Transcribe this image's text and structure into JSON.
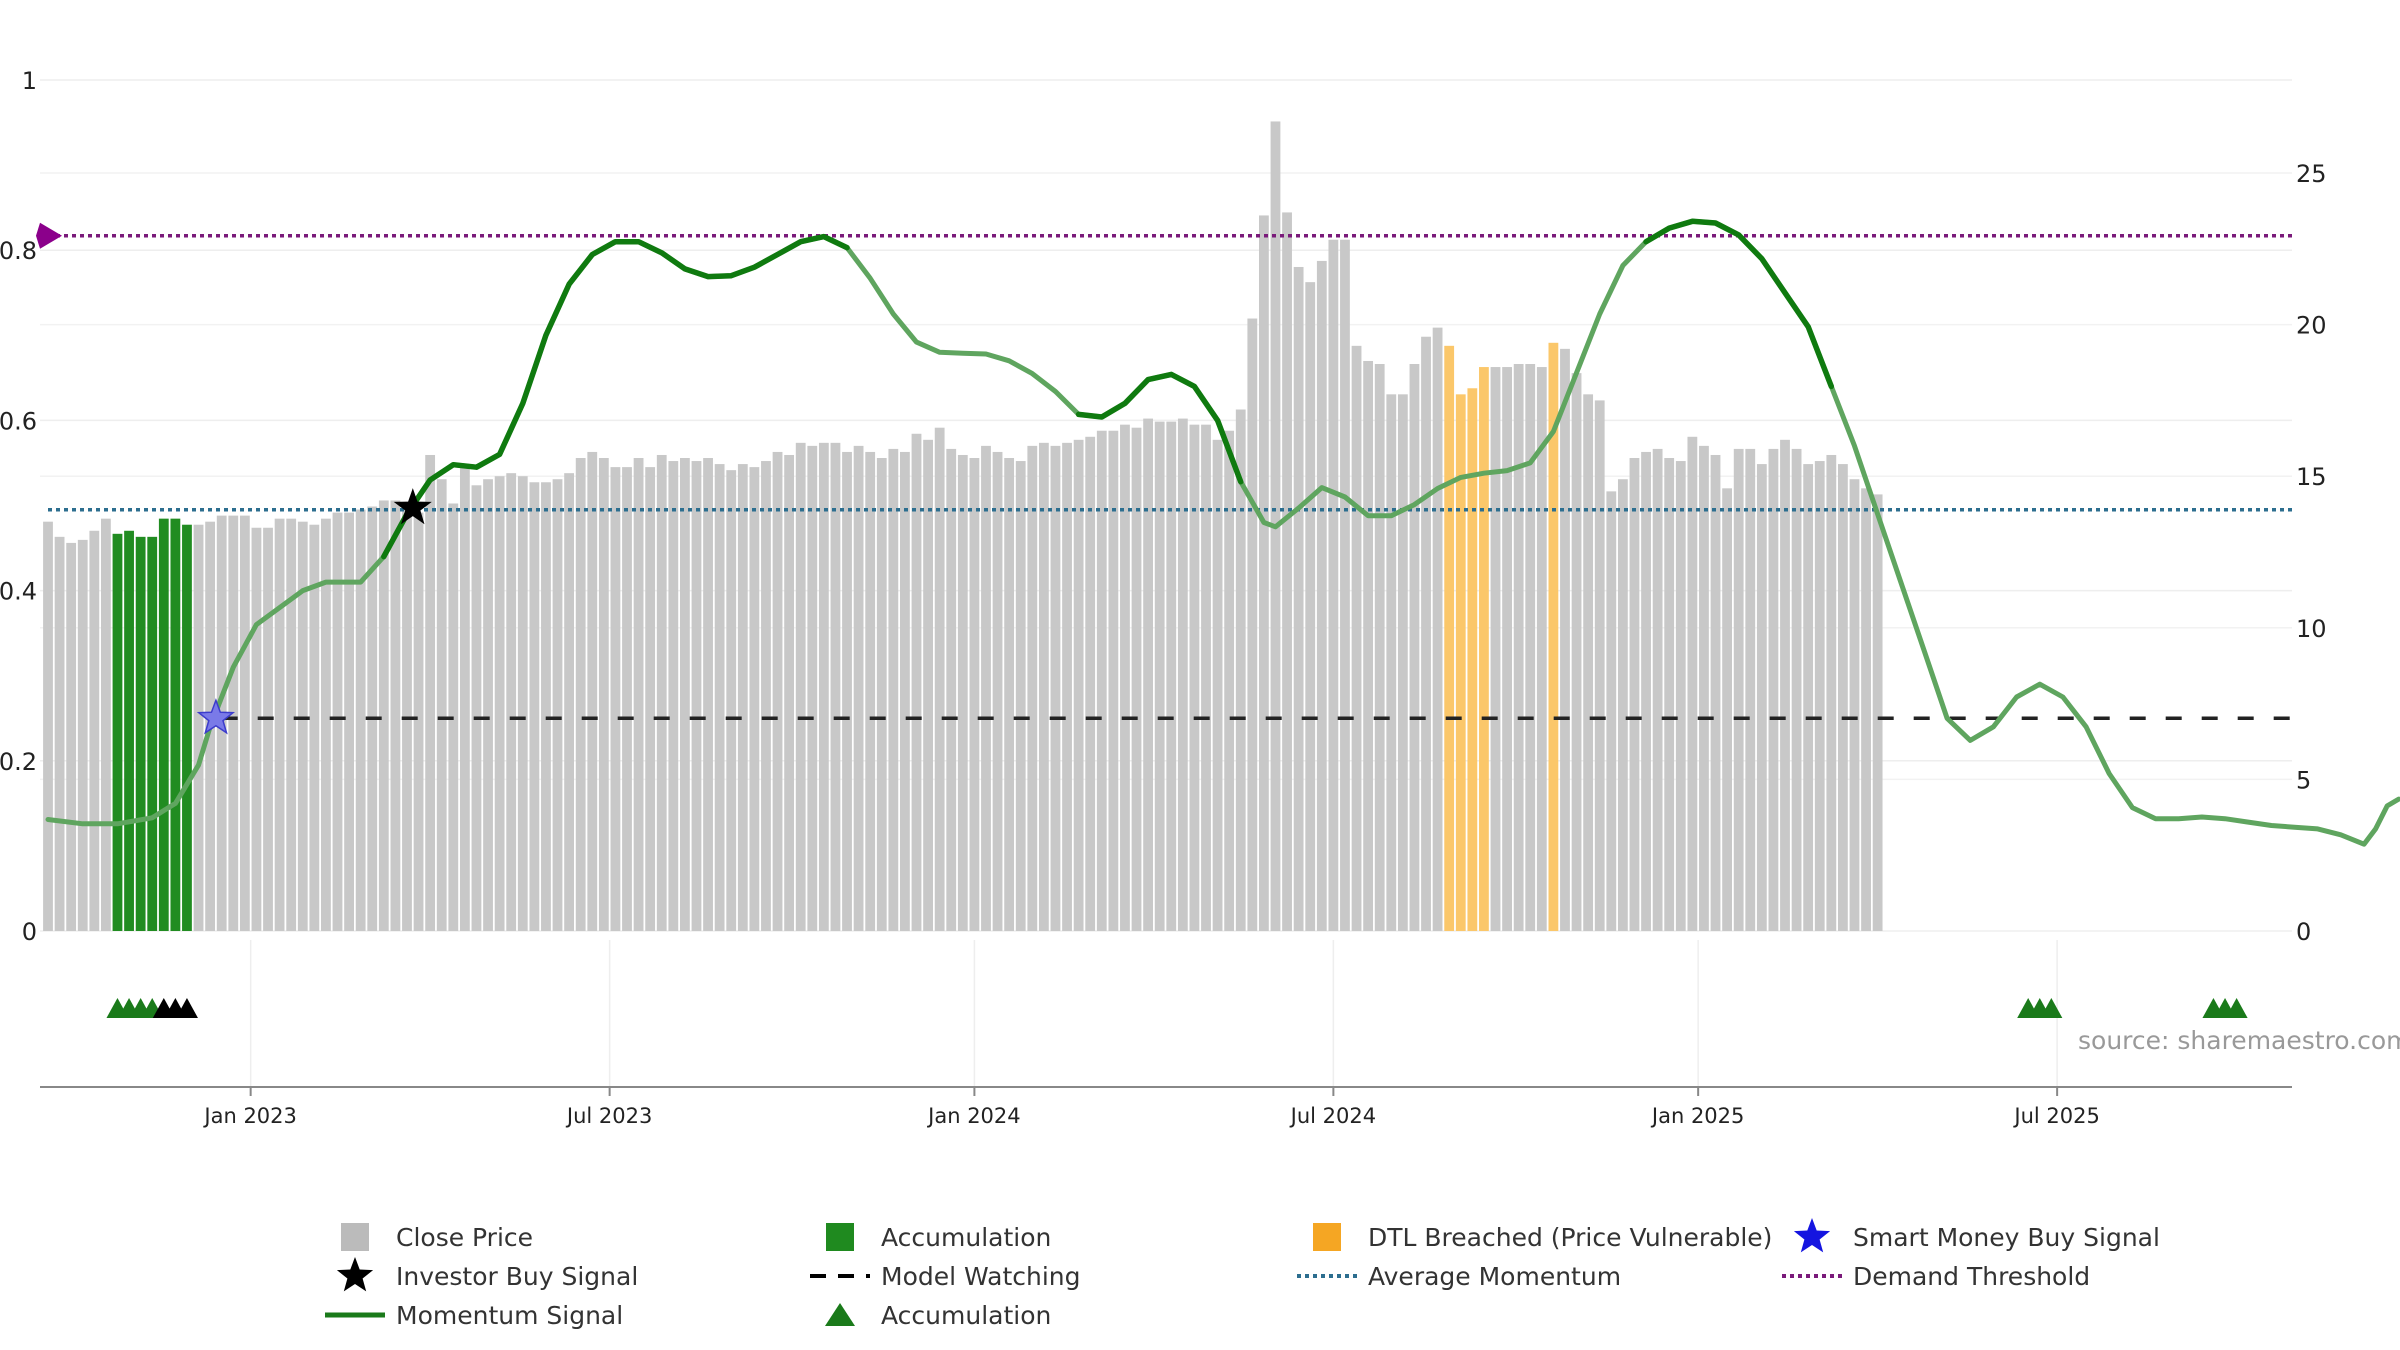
{
  "chart_data": {
    "type": "bar",
    "title": "",
    "source": "source: sharemaestro.com",
    "left_axis": {
      "min": 0,
      "max": 1,
      "ticks": [
        0,
        0.2,
        0.4,
        0.6,
        0.8,
        1
      ],
      "tick_labels": [
        "0",
        "0.2",
        "0.4",
        "0.6",
        "0.8",
        "1"
      ]
    },
    "right_axis": {
      "min": 0,
      "max": 25,
      "ticks": [
        0,
        5,
        10,
        15,
        20,
        25
      ],
      "tick_labels": [
        "0",
        "5",
        "10",
        "15",
        "20",
        "25"
      ]
    },
    "x_ticks": [
      {
        "label": "Jan 2023",
        "index": 17.5
      },
      {
        "label": "Jul 2023",
        "index": 48.5
      },
      {
        "label": "Jan 2024",
        "index": 80
      },
      {
        "label": "Jul 2024",
        "index": 111
      },
      {
        "label": "Jan 2025",
        "index": 142.5
      },
      {
        "label": "Jul 2025",
        "index": 173.5
      }
    ],
    "close_price_bars": [
      13.5,
      13,
      12.8,
      12.9,
      13.2,
      13.6,
      13.1,
      13.2,
      13,
      13,
      13.6,
      13.6,
      13.4,
      13.4,
      13.5,
      13.7,
      13.7,
      13.7,
      13.3,
      13.3,
      13.6,
      13.6,
      13.5,
      13.4,
      13.6,
      13.8,
      13.8,
      13.9,
      14,
      14.2,
      14.2,
      14,
      13.8,
      15.7,
      14.9,
      14.1,
      15.3,
      14.7,
      14.9,
      15,
      15.1,
      15,
      14.8,
      14.8,
      14.9,
      15.1,
      15.6,
      15.8,
      15.6,
      15.3,
      15.3,
      15.6,
      15.3,
      15.7,
      15.5,
      15.6,
      15.5,
      15.6,
      15.4,
      15.2,
      15.4,
      15.3,
      15.5,
      15.8,
      15.7,
      16.1,
      16,
      16.1,
      16.1,
      15.8,
      16,
      15.8,
      15.6,
      15.9,
      15.8,
      16.4,
      16.2,
      16.6,
      15.9,
      15.7,
      15.6,
      16,
      15.8,
      15.6,
      15.5,
      16,
      16.1,
      16,
      16.1,
      16.2,
      16.3,
      16.5,
      16.5,
      16.7,
      16.6,
      16.9,
      16.8,
      16.8,
      16.9,
      16.7,
      16.7,
      16.2,
      16.5,
      17.2,
      20.2,
      23.6,
      26.7,
      23.7,
      21.9,
      21.4,
      22.1,
      22.8,
      22.8,
      19.3,
      18.8,
      18.7,
      17.7,
      17.7,
      18.7,
      19.6,
      19.9,
      19.3,
      17.7,
      17.9,
      18.6,
      18.6,
      18.6,
      18.7,
      18.7,
      18.6,
      19.4,
      19.2,
      18.4,
      17.7,
      17.5,
      14.5,
      14.9,
      15.6,
      15.8,
      15.9,
      15.6,
      15.5,
      16.3,
      16,
      15.7,
      14.6,
      15.9,
      15.9,
      15.4,
      15.9,
      16.2,
      15.9,
      15.4,
      15.5,
      15.7,
      15.4,
      14.9,
      14.6,
      14.4
    ],
    "accumulation_bar_indices": [
      6,
      7,
      8,
      9,
      10,
      11,
      12,
      171,
      172,
      173,
      184,
      185,
      186
    ],
    "dtl_breached_bar_indices": [
      121,
      122,
      123,
      124,
      130
    ],
    "momentum_signal": [
      [
        0,
        0.131
      ],
      [
        3,
        0.126
      ],
      [
        6,
        0.126
      ],
      [
        9,
        0.133
      ],
      [
        11,
        0.15
      ],
      [
        13,
        0.195
      ],
      [
        14,
        0.24
      ],
      [
        16,
        0.31
      ],
      [
        18,
        0.36
      ],
      [
        20,
        0.38
      ],
      [
        22,
        0.4
      ],
      [
        24,
        0.41
      ],
      [
        27,
        0.41
      ],
      [
        29,
        0.44
      ],
      [
        31,
        0.49
      ],
      [
        33,
        0.53
      ],
      [
        35,
        0.548
      ],
      [
        37,
        0.545
      ],
      [
        39,
        0.56
      ],
      [
        41,
        0.62
      ],
      [
        43,
        0.7
      ],
      [
        45,
        0.76
      ],
      [
        47,
        0.795
      ],
      [
        49,
        0.81
      ],
      [
        51,
        0.81
      ],
      [
        53,
        0.797
      ],
      [
        55,
        0.778
      ],
      [
        57,
        0.769
      ],
      [
        59,
        0.77
      ],
      [
        61,
        0.78
      ],
      [
        63,
        0.795
      ],
      [
        65,
        0.81
      ],
      [
        67,
        0.816
      ],
      [
        69,
        0.803
      ],
      [
        71,
        0.767
      ],
      [
        73,
        0.725
      ],
      [
        75,
        0.692
      ],
      [
        77,
        0.68
      ],
      [
        79,
        0.679
      ],
      [
        81,
        0.678
      ],
      [
        83,
        0.67
      ],
      [
        85,
        0.655
      ],
      [
        87,
        0.634
      ],
      [
        89,
        0.607
      ],
      [
        91,
        0.604
      ],
      [
        93,
        0.62
      ],
      [
        95,
        0.648
      ],
      [
        97,
        0.654
      ],
      [
        99,
        0.64
      ],
      [
        101,
        0.6
      ],
      [
        103,
        0.528
      ],
      [
        105,
        0.48
      ],
      [
        106,
        0.475
      ],
      [
        108,
        0.497
      ],
      [
        110,
        0.521
      ],
      [
        112,
        0.51
      ],
      [
        114,
        0.488
      ],
      [
        116,
        0.488
      ],
      [
        118,
        0.501
      ],
      [
        120,
        0.52
      ],
      [
        122,
        0.533
      ],
      [
        124,
        0.538
      ],
      [
        126,
        0.541
      ],
      [
        128,
        0.55
      ],
      [
        130,
        0.587
      ],
      [
        132,
        0.656
      ],
      [
        134,
        0.725
      ],
      [
        136,
        0.782
      ],
      [
        138,
        0.81
      ],
      [
        140,
        0.826
      ],
      [
        142,
        0.834
      ],
      [
        144,
        0.832
      ],
      [
        146,
        0.818
      ],
      [
        148,
        0.79
      ],
      [
        150,
        0.75
      ],
      [
        152,
        0.71
      ],
      [
        154,
        0.64
      ],
      [
        156,
        0.57
      ],
      [
        158,
        0.49
      ],
      [
        160,
        0.41
      ],
      [
        162,
        0.33
      ],
      [
        164,
        0.25
      ],
      [
        166,
        0.224
      ],
      [
        168,
        0.24
      ],
      [
        170,
        0.275
      ],
      [
        172,
        0.29
      ],
      [
        174,
        0.275
      ],
      [
        176,
        0.24
      ],
      [
        178,
        0.185
      ],
      [
        180,
        0.145
      ],
      [
        182,
        0.132
      ],
      [
        184,
        0.132
      ],
      [
        186,
        0.134
      ],
      [
        188,
        0.132
      ],
      [
        190,
        0.128
      ],
      [
        192,
        0.124
      ],
      [
        194,
        0.122
      ],
      [
        196,
        0.12
      ],
      [
        198,
        0.113
      ],
      [
        200,
        0.102
      ],
      [
        201,
        0.12
      ],
      [
        202,
        0.147
      ],
      [
        203,
        0.155
      ]
    ],
    "momentum_highlight_ranges": [
      [
        29,
        70
      ],
      [
        89,
        103
      ],
      [
        137,
        154
      ]
    ],
    "model_watching_level": 0.25,
    "model_watching_start_index": 15,
    "average_momentum_level": 0.495,
    "demand_threshold_level": 0.817,
    "investor_buy_signal": {
      "index": 31.5,
      "value": 0.497
    },
    "smart_money_buy_signal": {
      "index": 14.5,
      "value": 0.25
    },
    "accumulation_markers": {
      "green_indices": [
        6,
        7,
        8,
        9,
        171,
        172,
        173,
        187,
        188,
        189
      ],
      "black_indices": [
        10,
        11,
        12
      ]
    },
    "legend": [
      {
        "label": "Close Price",
        "symbol": "square",
        "color": "#bbbbbb"
      },
      {
        "label": "Accumulation",
        "symbol": "square",
        "color": "#1f8a1f"
      },
      {
        "label": "DTL Breached (Price Vulnerable)",
        "symbol": "square",
        "color": "#f5a623"
      },
      {
        "label": "Smart Money Buy Signal",
        "symbol": "star",
        "color": "#1515e0"
      },
      {
        "label": "Investor Buy Signal",
        "symbol": "star",
        "color": "#000000"
      },
      {
        "label": "Model Watching",
        "symbol": "dash",
        "color": "#000000"
      },
      {
        "label": "Average Momentum",
        "symbol": "dot",
        "color": "#2c6e8f"
      },
      {
        "label": "Demand Threshold",
        "symbol": "dot",
        "color": "#7a1a7a"
      },
      {
        "label": "Momentum Signal",
        "symbol": "line",
        "color": "#1a7a1a"
      },
      {
        "label": "Accumulation",
        "symbol": "triangle",
        "color": "#1a7a1a"
      }
    ]
  }
}
